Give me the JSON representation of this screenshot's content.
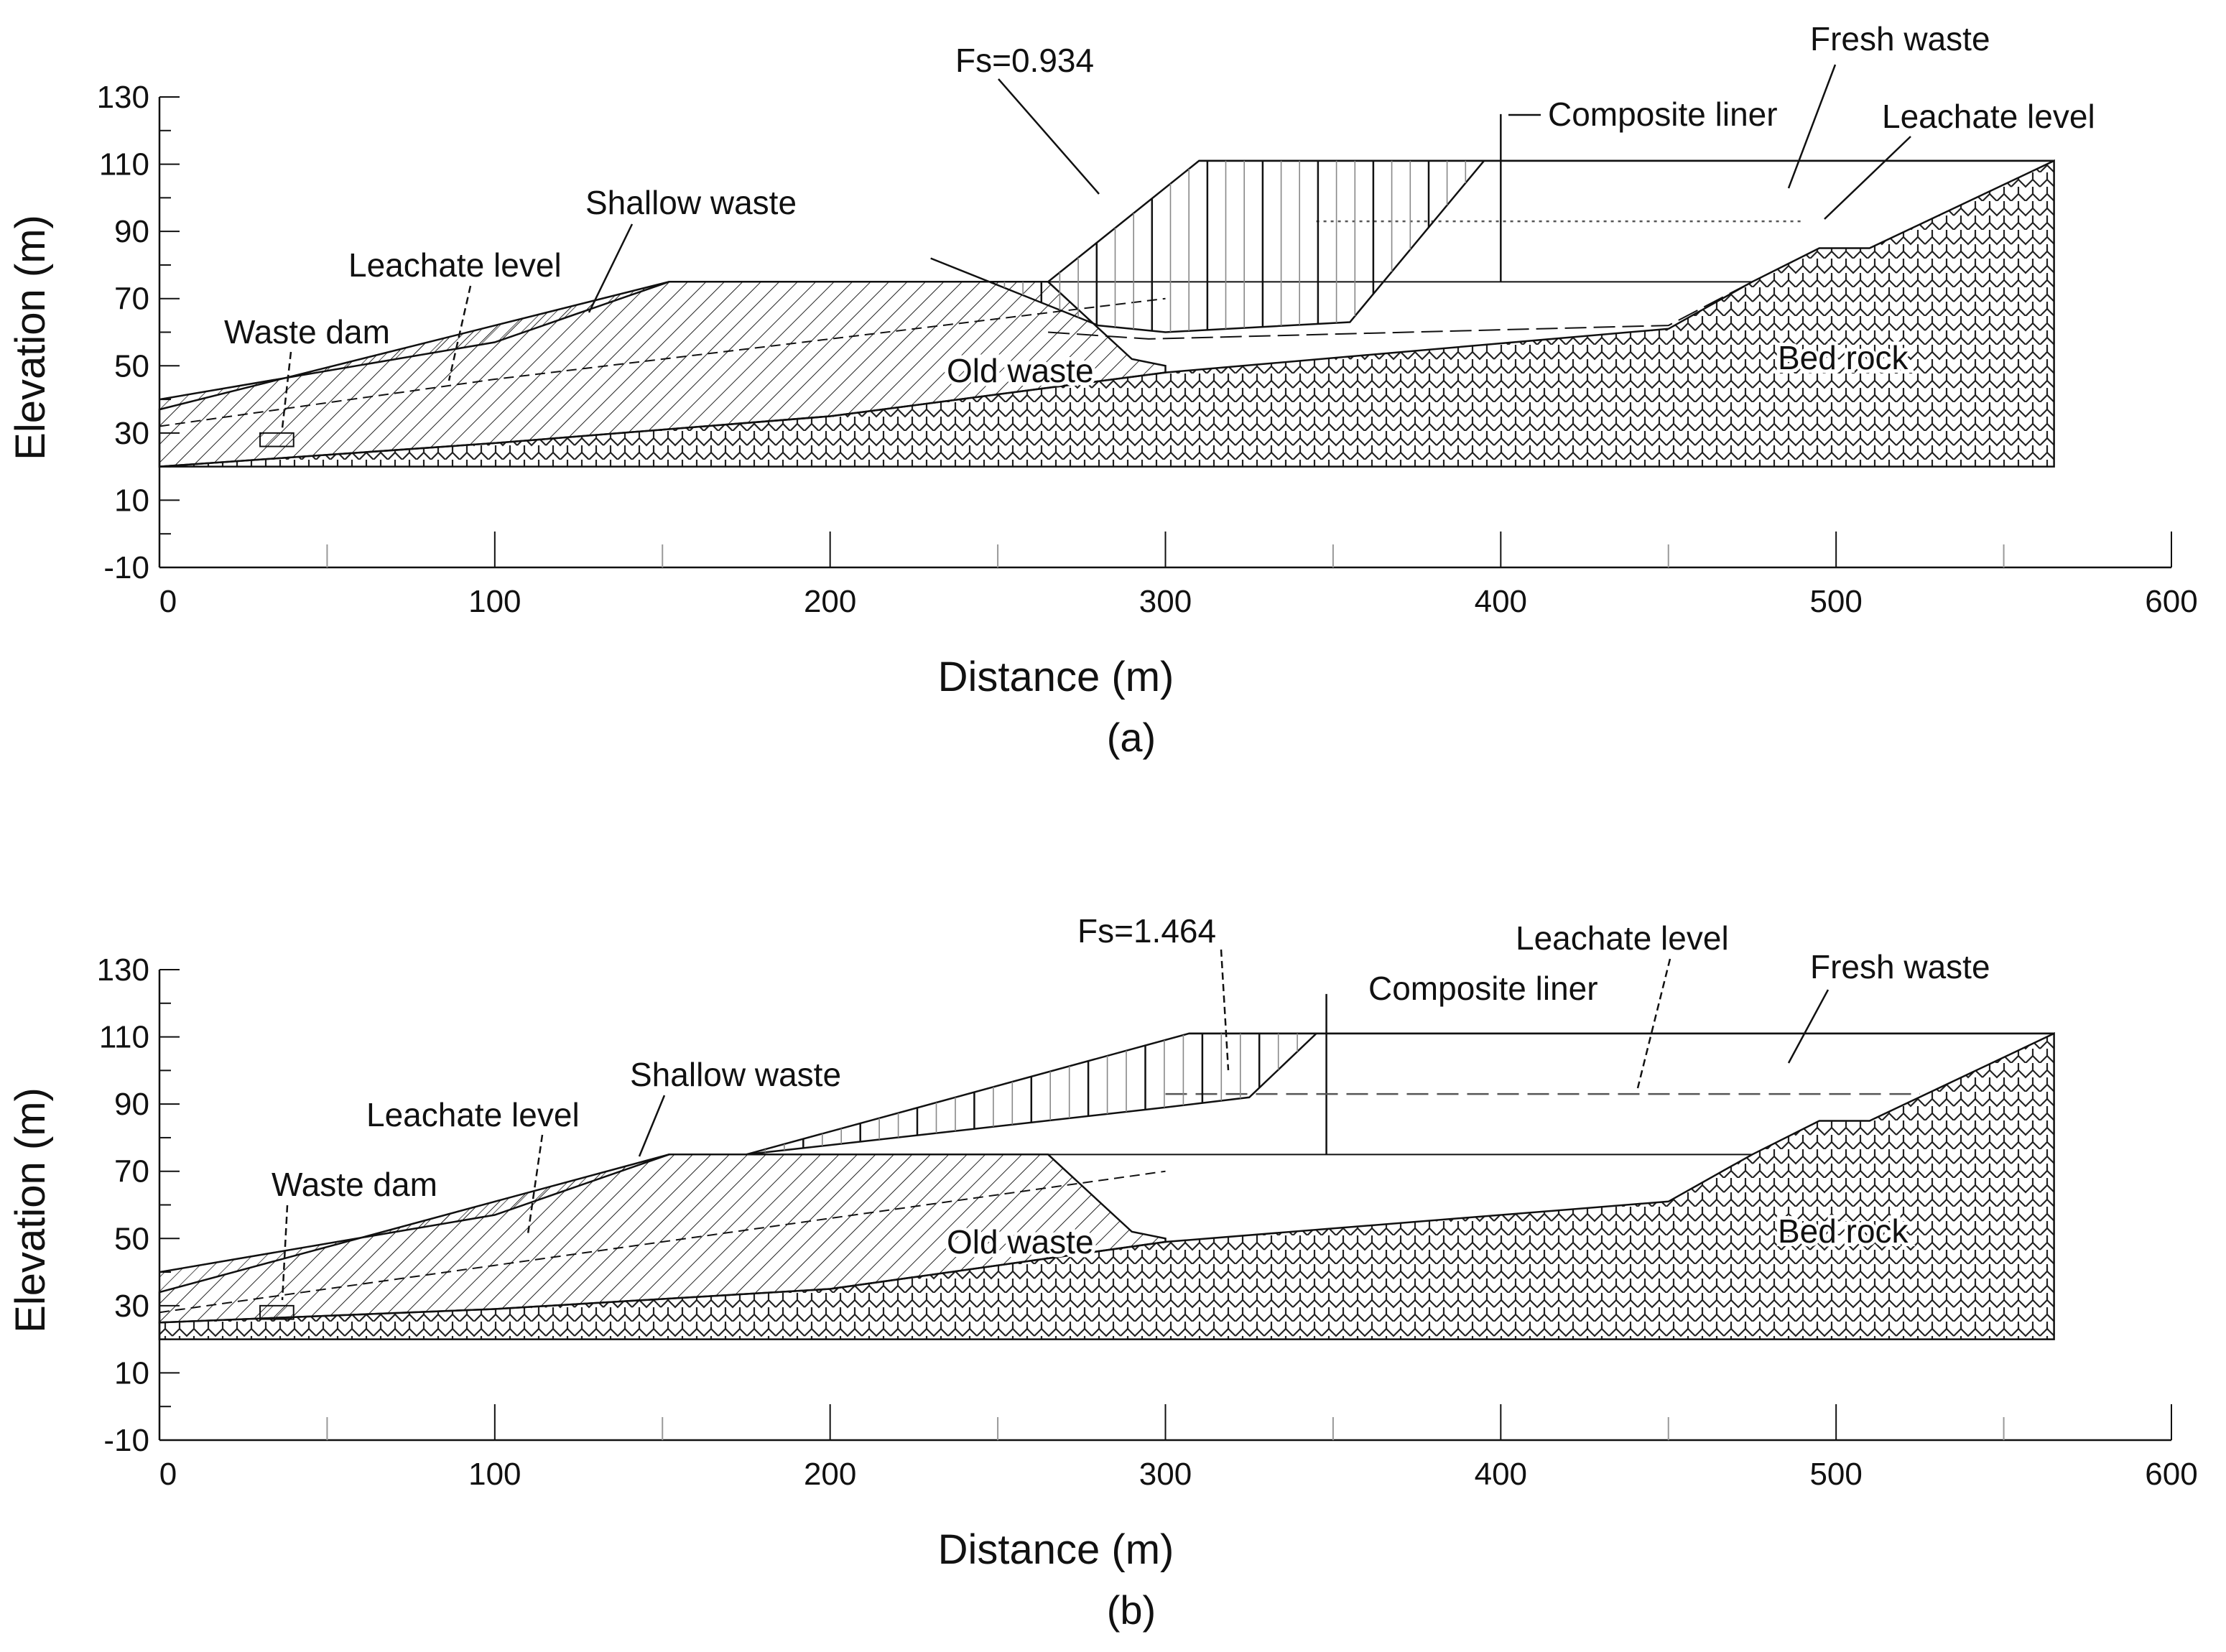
{
  "figure": {
    "panels": [
      {
        "caption": "(a)",
        "fs_label": "Fs=0.934",
        "labels": {
          "fresh_waste": "Fresh waste",
          "composite_liner": "Composite liner",
          "leachate_level_right": "Leachate level",
          "shallow_waste": "Shallow waste",
          "leachate_level_left": "Leachate level",
          "waste_dam": "Waste dam",
          "old_waste": "Old waste",
          "bed_rock": "Bed rock"
        }
      },
      {
        "caption": "(b)",
        "fs_label": "Fs=1.464",
        "labels": {
          "fresh_waste": "Fresh waste",
          "composite_liner": "Composite liner",
          "leachate_level_right": "Leachate level",
          "shallow_waste": "Shallow waste",
          "leachate_level_left": "Leachate level",
          "waste_dam": "Waste dam",
          "old_waste": "Old waste",
          "bed_rock": "Bed rock"
        }
      }
    ]
  },
  "chart_data": [
    {
      "type": "cross-section",
      "panel": "(a)",
      "xlabel": "Distance (m)",
      "ylabel": "Elevation (m)",
      "xlim": [
        0,
        600
      ],
      "ylim": [
        -10,
        130
      ],
      "xticks": [
        0,
        100,
        200,
        300,
        400,
        500,
        600
      ],
      "yticks": [
        -10,
        10,
        30,
        50,
        70,
        90,
        110,
        130
      ],
      "factor_of_safety": 0.934,
      "ground_surface": [
        [
          0,
          40
        ],
        [
          100,
          57
        ],
        [
          152,
          75
        ],
        [
          265,
          75
        ],
        [
          310,
          111
        ],
        [
          565,
          111
        ]
      ],
      "bedrock_surface": [
        [
          0,
          20
        ],
        [
          100,
          27
        ],
        [
          200,
          35
        ],
        [
          300,
          48
        ],
        [
          450,
          61
        ],
        [
          475,
          75
        ],
        [
          495,
          85
        ],
        [
          510,
          85
        ],
        [
          565,
          111
        ]
      ],
      "old_waste_top": [
        [
          0,
          37
        ],
        [
          152,
          75
        ],
        [
          265,
          75
        ],
        [
          290,
          52
        ],
        [
          300,
          50
        ]
      ],
      "fresh_waste_base": [
        [
          265,
          60
        ],
        [
          295,
          58
        ],
        [
          450,
          62
        ],
        [
          475,
          75
        ]
      ],
      "slip_surface": [
        [
          230,
          82
        ],
        [
          280,
          62
        ],
        [
          300,
          60
        ],
        [
          355,
          63
        ],
        [
          395,
          111
        ]
      ],
      "leachate_level_left": [
        [
          0,
          32
        ],
        [
          100,
          46
        ],
        [
          200,
          58
        ],
        [
          300,
          70
        ]
      ],
      "leachate_level_right": [
        [
          345,
          93
        ],
        [
          490,
          93
        ]
      ],
      "composite_liner_x": 400
    },
    {
      "type": "cross-section",
      "panel": "(b)",
      "xlabel": "Distance (m)",
      "ylabel": "Elevation (m)",
      "xlim": [
        0,
        600
      ],
      "ylim": [
        -10,
        130
      ],
      "xticks": [
        0,
        100,
        200,
        300,
        400,
        500,
        600
      ],
      "yticks": [
        -10,
        10,
        30,
        50,
        70,
        90,
        110,
        130
      ],
      "factor_of_safety": 1.464,
      "ground_surface": [
        [
          0,
          40
        ],
        [
          100,
          57
        ],
        [
          152,
          75
        ],
        [
          175,
          75
        ],
        [
          307,
          111
        ],
        [
          565,
          111
        ]
      ],
      "bedrock_surface": [
        [
          0,
          25
        ],
        [
          100,
          29
        ],
        [
          200,
          35
        ],
        [
          300,
          49
        ],
        [
          450,
          61
        ],
        [
          475,
          75
        ],
        [
          495,
          85
        ],
        [
          510,
          85
        ],
        [
          565,
          111
        ]
      ],
      "old_waste_top": [
        [
          0,
          34
        ],
        [
          152,
          75
        ],
        [
          265,
          75
        ],
        [
          290,
          52
        ],
        [
          300,
          50
        ]
      ],
      "slip_surface": [
        [
          175,
          75
        ],
        [
          300,
          89
        ],
        [
          325,
          92
        ],
        [
          345,
          111
        ]
      ],
      "leachate_level_left": [
        [
          0,
          28
        ],
        [
          100,
          42
        ],
        [
          200,
          56
        ],
        [
          300,
          70
        ]
      ],
      "leachate_level_right": [
        [
          300,
          93
        ],
        [
          525,
          93
        ]
      ],
      "composite_liner_x": 348
    }
  ]
}
